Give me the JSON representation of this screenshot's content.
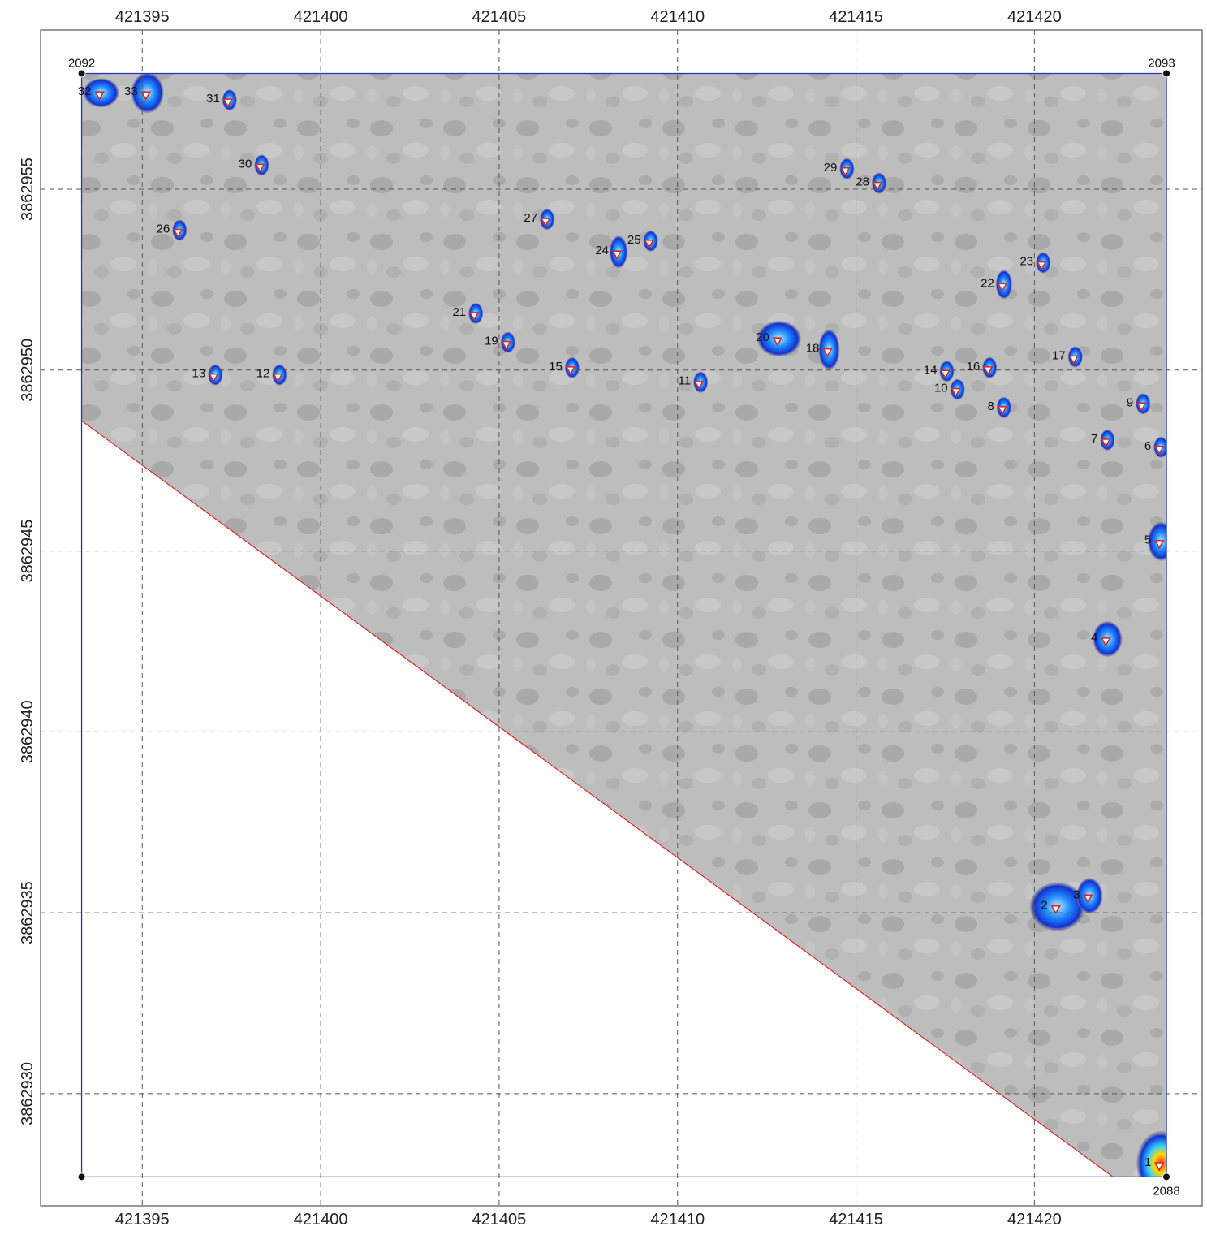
{
  "map": {
    "x_ticks": [
      "421395",
      "421400",
      "421405",
      "421410",
      "421415",
      "421420"
    ],
    "y_ticks": [
      "3862955",
      "3862950",
      "3862945",
      "3862940",
      "3862935",
      "3862930"
    ],
    "x_domain": [
      421392.15,
      421424.7
    ],
    "y_domain": [
      3862926.9,
      3862959.4
    ],
    "grid": true,
    "grid_style": "dashed",
    "corners": [
      {
        "label": "2092",
        "x": 421393.3,
        "y": 3862958.2
      },
      {
        "label": "2093",
        "x": 421423.7,
        "y": 3862958.2
      },
      {
        "label": "2088",
        "x": 421423.7,
        "y": 3862927.7
      },
      {
        "label": "",
        "x": 421393.3,
        "y": 3862927.7
      }
    ],
    "boundary_color": "#2233bb",
    "cut_line": {
      "color": "#d42a2a",
      "from": [
        421393.3,
        3862948.6
      ],
      "to": [
        421422.2,
        3862927.7
      ]
    },
    "survey_fill": "#b9b9b9",
    "anomaly_color": "#1e64ff",
    "targets": [
      {
        "id": "1",
        "x": 421423.5,
        "y": 3862928.0,
        "hot": true
      },
      {
        "id": "2",
        "x": 421420.6,
        "y": 3862935.1
      },
      {
        "id": "3",
        "x": 421421.5,
        "y": 3862935.4
      },
      {
        "id": "4",
        "x": 421422.0,
        "y": 3862942.5
      },
      {
        "id": "5",
        "x": 421423.5,
        "y": 3862945.2
      },
      {
        "id": "6",
        "x": 421423.5,
        "y": 3862947.8
      },
      {
        "id": "7",
        "x": 421422.0,
        "y": 3862948.0
      },
      {
        "id": "8",
        "x": 421419.1,
        "y": 3862948.9
      },
      {
        "id": "9",
        "x": 421423.0,
        "y": 3862949.0
      },
      {
        "id": "10",
        "x": 421417.8,
        "y": 3862949.4
      },
      {
        "id": "11",
        "x": 421410.6,
        "y": 3862949.6
      },
      {
        "id": "12",
        "x": 421398.8,
        "y": 3862949.8
      },
      {
        "id": "13",
        "x": 421397.0,
        "y": 3862949.8
      },
      {
        "id": "14",
        "x": 421417.5,
        "y": 3862949.9
      },
      {
        "id": "15",
        "x": 421407.0,
        "y": 3862950.0
      },
      {
        "id": "16",
        "x": 421418.7,
        "y": 3862950.0
      },
      {
        "id": "17",
        "x": 421421.1,
        "y": 3862950.3
      },
      {
        "id": "18",
        "x": 421414.2,
        "y": 3862950.5
      },
      {
        "id": "19",
        "x": 421405.2,
        "y": 3862950.7
      },
      {
        "id": "20",
        "x": 421412.8,
        "y": 3862950.8
      },
      {
        "id": "21",
        "x": 421404.3,
        "y": 3862951.5
      },
      {
        "id": "22",
        "x": 421419.1,
        "y": 3862952.3
      },
      {
        "id": "23",
        "x": 421420.2,
        "y": 3862952.9
      },
      {
        "id": "24",
        "x": 421408.3,
        "y": 3862953.2
      },
      {
        "id": "25",
        "x": 421409.2,
        "y": 3862953.5
      },
      {
        "id": "26",
        "x": 421396.0,
        "y": 3862953.8
      },
      {
        "id": "27",
        "x": 421406.3,
        "y": 3862954.1
      },
      {
        "id": "28",
        "x": 421415.6,
        "y": 3862955.1
      },
      {
        "id": "29",
        "x": 421414.7,
        "y": 3862955.5
      },
      {
        "id": "30",
        "x": 421398.3,
        "y": 3862955.6
      },
      {
        "id": "31",
        "x": 421397.4,
        "y": 3862957.4
      },
      {
        "id": "32",
        "x": 421393.8,
        "y": 3862957.6
      },
      {
        "id": "33",
        "x": 421395.1,
        "y": 3862957.6
      }
    ]
  }
}
